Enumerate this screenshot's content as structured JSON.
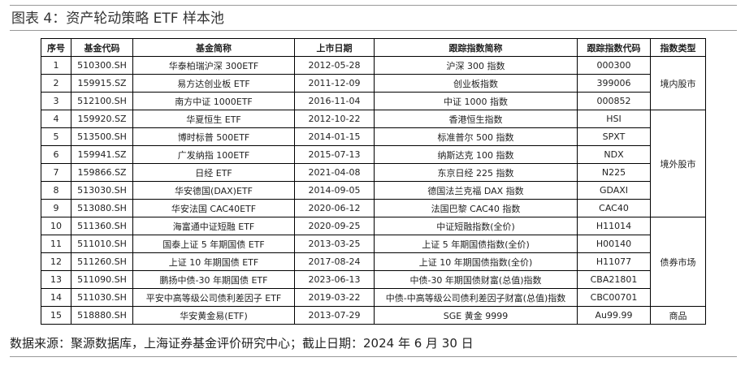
{
  "header": {
    "title": "图表 4：资产轮动策略 ETF 样本池"
  },
  "table": {
    "columns": [
      "序号",
      "基金代码",
      "基金简称",
      "上市日期",
      "跟踪指数简称",
      "跟踪指数代码",
      "指数类型"
    ],
    "rows": [
      [
        "1",
        "510300.SH",
        "华泰柏瑞沪深 300ETF",
        "2012-05-28",
        "沪深 300 指数",
        "000300"
      ],
      [
        "2",
        "159915.SZ",
        "易方达创业板 ETF",
        "2011-12-09",
        "创业板指数",
        "399006"
      ],
      [
        "3",
        "512100.SH",
        "南方中证 1000ETF",
        "2016-11-04",
        "中证 1000 指数",
        "000852"
      ],
      [
        "4",
        "159920.SZ",
        "华夏恒生 ETF",
        "2012-10-22",
        "香港恒生指数",
        "HSI"
      ],
      [
        "5",
        "513500.SH",
        "博时标普 500ETF",
        "2014-01-15",
        "标准普尔 500 指数",
        "SPXT"
      ],
      [
        "6",
        "159941.SZ",
        "广发纳指 100ETF",
        "2015-07-13",
        "纳斯达克 100 指数",
        "NDX"
      ],
      [
        "7",
        "159866.SZ",
        "日经 ETF",
        "2021-04-08",
        "东京日经 225 指数",
        "N225"
      ],
      [
        "8",
        "513030.SH",
        "华安德国(DAX)ETF",
        "2014-09-05",
        "德国法兰克福 DAX 指数",
        "GDAXI"
      ],
      [
        "9",
        "513080.SH",
        "华安法国 CAC40ETF",
        "2020-06-12",
        "法国巴黎 CAC40 指数",
        "CAC40"
      ],
      [
        "10",
        "511360.SH",
        "海富通中证短融 ETF",
        "2020-09-25",
        "中证短融指数(全价)",
        "H11014"
      ],
      [
        "11",
        "511010.SH",
        "国泰上证 5 年期国债 ETF",
        "2013-03-25",
        "上证 5 年期国债指数(全价)",
        "H00140"
      ],
      [
        "12",
        "511260.SH",
        "上证 10 年期国债 ETF",
        "2017-08-24",
        "上证 10 年期国债指数(全价)",
        "H11077"
      ],
      [
        "13",
        "511090.SH",
        "鹏扬中债-30 年期国债 ETF",
        "2023-06-13",
        "中债-30 年期国债财富(总值)指数",
        "CBA21801"
      ],
      [
        "14",
        "511030.SH",
        "平安中高等级公司债利差因子 ETF",
        "2019-03-22",
        "中债-中高等级公司债利差因子财富(总值)指数",
        "CBC00701"
      ],
      [
        "15",
        "518880.SH",
        "华安黄金易(ETF)",
        "2013-07-29",
        "SGE 黄金 9999",
        "Au99.99"
      ]
    ],
    "groups": [
      "境内股市",
      "境外股市",
      "债券市场",
      "商品"
    ]
  },
  "footer": {
    "source": "数据来源：聚源数据库，上海证券基金评价研究中心；截止日期：2024 年 6 月 30 日"
  }
}
